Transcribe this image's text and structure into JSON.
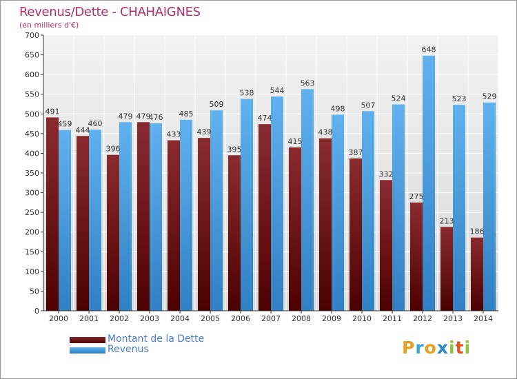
{
  "chart_data": {
    "type": "bar",
    "title": "Revenus/Dette - CHAHAIGNES",
    "subtitle": "(en milliers d'€)",
    "categories": [
      "2000",
      "2001",
      "2002",
      "2003",
      "2004",
      "2005",
      "2006",
      "2007",
      "2008",
      "2009",
      "2010",
      "2011",
      "2012",
      "2013",
      "2014"
    ],
    "series": [
      {
        "name": "Montant de la Dette",
        "values": [
          491,
          444,
          396,
          479,
          433,
          439,
          395,
          474,
          415,
          438,
          387,
          332,
          275,
          213,
          186
        ]
      },
      {
        "name": "Revenus",
        "values": [
          459,
          460,
          479,
          476,
          485,
          509,
          538,
          544,
          563,
          498,
          507,
          524,
          648,
          523,
          529
        ]
      }
    ],
    "ylim": [
      0,
      700
    ],
    "yticks": [
      0,
      50,
      100,
      150,
      200,
      250,
      300,
      350,
      400,
      450,
      500,
      550,
      600,
      650,
      700
    ],
    "grid": true,
    "legend_position": "bottom-left",
    "colors": {
      "debt": "#7a2326",
      "debt_dark": "#4d0000",
      "revenue": "#5aaeea",
      "revenue_dark": "#2f86c9",
      "title": "#b3306e"
    }
  },
  "logo": {
    "letters": [
      "P",
      "r",
      "o",
      "x",
      "i",
      "t",
      "i"
    ],
    "colors": [
      "#e8a020",
      "#3aa6d8",
      "#e8a020",
      "#2f86c9",
      "#8cc43c",
      "#e05020",
      "#8cc43c"
    ]
  }
}
